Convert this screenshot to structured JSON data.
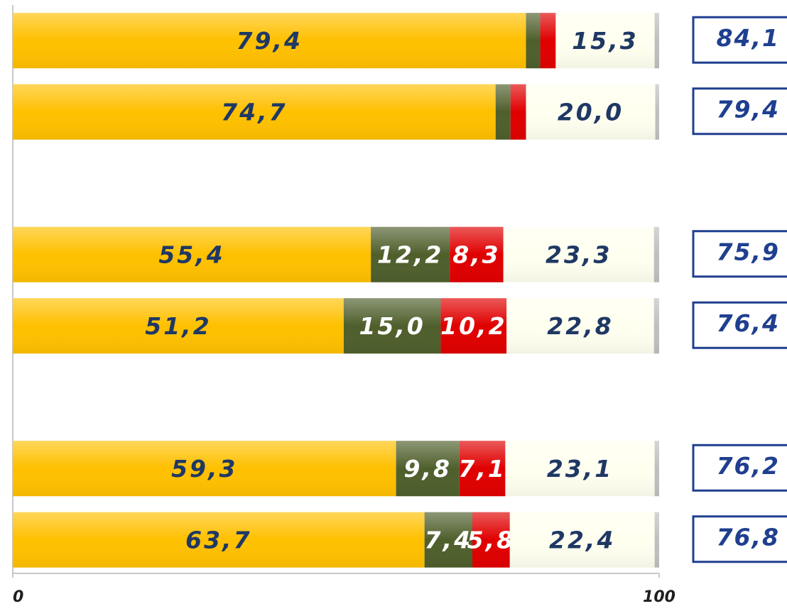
{
  "chart_data": {
    "type": "stacked-barh",
    "categories": [
      null,
      null,
      null,
      null,
      null,
      null,
      null,
      null
    ],
    "series": [
      {
        "color": "#ffc000",
        "label_color": "#1f3864",
        "values": [
          79.4,
          74.7,
          null,
          55.4,
          51.2,
          null,
          59.3,
          63.7
        ],
        "value_labels": [
          "79,4",
          "74,7",
          null,
          "55,4",
          "51,2",
          null,
          "59,3",
          "63,7"
        ]
      },
      {
        "color": "#4f5f2c",
        "label_color": "#ffffff",
        "values": [
          2.2,
          2.3,
          null,
          12.2,
          15.0,
          null,
          9.8,
          7.4
        ],
        "value_labels": [
          null,
          null,
          null,
          "12,2",
          "15,0",
          null,
          "9,8",
          "7,4"
        ]
      },
      {
        "color": "#e00000",
        "label_color": "#ffffff",
        "values": [
          2.4,
          2.4,
          null,
          8.3,
          10.2,
          null,
          7.1,
          5.8
        ],
        "value_labels": [
          null,
          null,
          null,
          "8,3",
          "10,2",
          null,
          "7,1",
          "5,8"
        ]
      },
      {
        "color": "#fffff0",
        "label_color": "#1f3864",
        "values": [
          15.3,
          20.0,
          null,
          23.3,
          22.8,
          null,
          23.1,
          22.4
        ],
        "value_labels": [
          "15,3",
          "20,0",
          null,
          "23,3",
          "22,8",
          null,
          "23,1",
          "22,4"
        ]
      },
      {
        "color": "#bfbfbf",
        "values": [
          0.7,
          0.6,
          null,
          0.8,
          0.8,
          null,
          0.7,
          0.7
        ]
      }
    ],
    "totals": {
      "color": "#1f3f8f",
      "values": [
        84.1,
        79.4,
        null,
        75.9,
        76.4,
        null,
        76.2,
        76.8
      ],
      "value_labels": [
        "84,1",
        "79,4",
        null,
        "75,9",
        "76,4",
        null,
        "76,2",
        "76,8"
      ]
    },
    "xlim": [
      0,
      100
    ],
    "xticks": [
      0,
      100
    ]
  }
}
